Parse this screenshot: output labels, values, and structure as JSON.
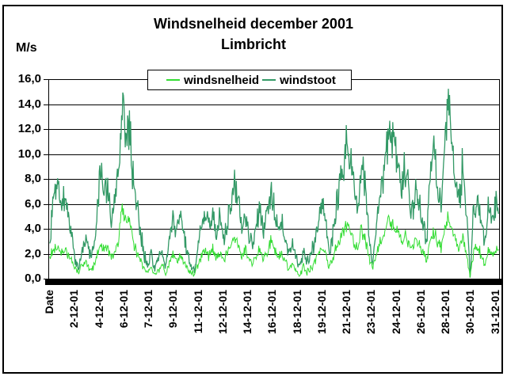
{
  "title": {
    "line1": "Windsnelheid december 2001",
    "line2": "Limbricht"
  },
  "y_axis": {
    "unit_label": "M/s",
    "tick_labels": [
      "16,0",
      "14,0",
      "12,0",
      "10,0",
      "8,0",
      "6,0",
      "4,0",
      "2,0",
      "0,0"
    ]
  },
  "x_axis": {
    "labels": [
      {
        "label": "Date",
        "cat": 0
      },
      {
        "label": "2-12-01",
        "cat": 41
      },
      {
        "label": "4-12-01",
        "cat": 82
      },
      {
        "label": "6-12-01",
        "cat": 123
      },
      {
        "label": "7-12-01",
        "cat": 164
      },
      {
        "label": "9-12-01",
        "cat": 205
      },
      {
        "label": "11-12-01",
        "cat": 246
      },
      {
        "label": "12-12-01",
        "cat": 287
      },
      {
        "label": "14-12-01",
        "cat": 328
      },
      {
        "label": "16-12-01",
        "cat": 369
      },
      {
        "label": "18-12-01",
        "cat": 410
      },
      {
        "label": "19-12-01",
        "cat": 451
      },
      {
        "label": "21-12-01",
        "cat": 492
      },
      {
        "label": "23-12-01",
        "cat": 533
      },
      {
        "label": "24-12-01",
        "cat": 574
      },
      {
        "label": "26-12-01",
        "cat": 615
      },
      {
        "label": "28-12-01",
        "cat": 656
      },
      {
        "label": "30-12-01",
        "cat": 697
      },
      {
        "label": "31-12-01",
        "cat": 738
      }
    ]
  },
  "legend": {
    "items": [
      {
        "label": "windsnelheid"
      },
      {
        "label": "windstoot"
      }
    ]
  },
  "chart_data": {
    "type": "line",
    "title": "Windsnelheid december 2001",
    "subtitle": "Limbricht",
    "ylabel": "M/s",
    "xlabel": "Date",
    "ylim": [
      0,
      16
    ],
    "y_step": 2,
    "grid": true,
    "legend_position": "top",
    "x_range": "hourly values, 1-12-01 through 31-12-01",
    "keyframe_interval_hours": 6,
    "series": [
      {
        "name": "windsnelheid",
        "color": "#33dd33",
        "noise": 0.7,
        "values": [
          1.8,
          2.2,
          2.6,
          2.0,
          2.3,
          2.0,
          1.5,
          0.8,
          0.5,
          1.0,
          1.4,
          0.7,
          1.0,
          1.8,
          2.8,
          2.2,
          2.4,
          1.7,
          2.2,
          3.2,
          5.6,
          4.4,
          4.8,
          3.0,
          2.2,
          1.5,
          0.8,
          0.5,
          0.8,
          0.3,
          0.6,
          1.0,
          0.5,
          1.2,
          2.0,
          1.6,
          1.8,
          1.4,
          0.8,
          0.4,
          0.4,
          1.2,
          2.0,
          2.2,
          1.8,
          2.4,
          1.5,
          2.0,
          1.4,
          2.0,
          2.8,
          3.4,
          2.8,
          1.8,
          2.4,
          1.5,
          1.2,
          1.8,
          2.5,
          1.7,
          2.2,
          3.0,
          2.4,
          1.6,
          2.0,
          1.3,
          0.9,
          1.2,
          0.7,
          0.3,
          1.0,
          0.5,
          0.8,
          1.3,
          2.0,
          2.5,
          2.1,
          0.9,
          1.5,
          2.5,
          3.0,
          3.7,
          4.4,
          3.8,
          2.9,
          2.2,
          4.0,
          3.2,
          1.8,
          0.9,
          1.6,
          2.8,
          3.4,
          4.2,
          4.7,
          4.0,
          3.8,
          3.2,
          3.6,
          3.0,
          2.4,
          3.0,
          2.6,
          2.0,
          1.5,
          3.2,
          3.8,
          3.0,
          2.5,
          3.8,
          5.0,
          3.9,
          3.0,
          2.3,
          3.5,
          2.0,
          0.2,
          2.2,
          2.6,
          2.0,
          1.2,
          2.3,
          1.8,
          2.2
        ]
      },
      {
        "name": "windstoot",
        "color": "#339966",
        "noise": 1.0,
        "values": [
          2.5,
          6.5,
          7.9,
          5.8,
          6.5,
          5.0,
          3.8,
          1.5,
          0.8,
          2.5,
          3.6,
          1.8,
          2.2,
          5.0,
          8.9,
          7.0,
          7.3,
          4.8,
          6.5,
          9.0,
          14.0,
          11.5,
          11.8,
          8.0,
          6.0,
          4.0,
          2.0,
          1.2,
          1.8,
          0.6,
          1.5,
          2.2,
          1.0,
          3.0,
          5.3,
          4.0,
          4.8,
          3.5,
          2.0,
          0.8,
          0.6,
          2.8,
          4.5,
          5.2,
          4.2,
          5.5,
          3.5,
          4.8,
          3.0,
          4.5,
          6.2,
          7.6,
          6.5,
          4.0,
          5.5,
          3.5,
          2.5,
          4.2,
          5.8,
          4.0,
          5.0,
          6.8,
          5.5,
          3.8,
          4.5,
          3.0,
          2.0,
          2.8,
          1.5,
          0.8,
          2.2,
          1.2,
          1.8,
          3.0,
          4.8,
          6.2,
          5.0,
          2.0,
          3.5,
          6.0,
          7.5,
          9.0,
          11.2,
          9.5,
          7.0,
          5.0,
          9.5,
          7.5,
          4.0,
          1.2,
          3.5,
          6.5,
          8.0,
          10.5,
          12.2,
          10.0,
          9.0,
          7.5,
          8.8,
          7.0,
          5.5,
          7.0,
          6.0,
          4.5,
          3.0,
          8.5,
          10.2,
          7.5,
          6.0,
          9.5,
          15.2,
          10.5,
          8.0,
          6.0,
          9.7,
          5.5,
          0.3,
          5.5,
          6.3,
          5.0,
          2.5,
          5.8,
          4.5,
          6.0
        ]
      }
    ]
  }
}
